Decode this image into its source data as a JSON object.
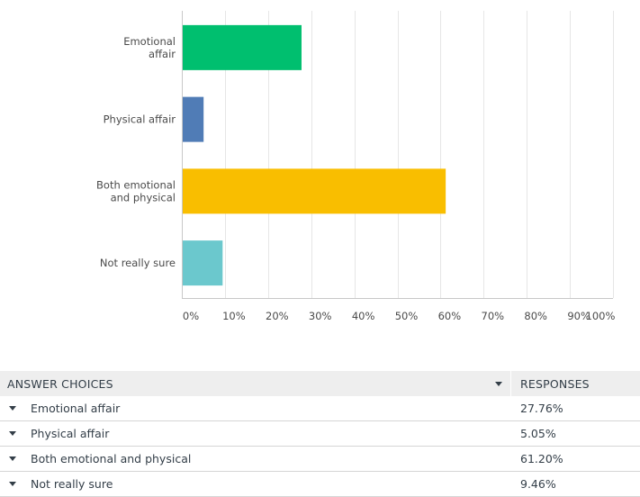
{
  "chart_data": {
    "type": "bar",
    "orientation": "horizontal",
    "categories": [
      [
        "Emotional",
        "affair"
      ],
      [
        "Physical affair"
      ],
      [
        "Both emotional",
        "and physical"
      ],
      [
        "Not really sure"
      ]
    ],
    "values": [
      27.76,
      5.05,
      61.2,
      9.46
    ],
    "colors": [
      "#00bf6f",
      "#507cb6",
      "#f9be00",
      "#6bc8cd"
    ],
    "xlim": [
      0,
      100
    ],
    "x_ticks": [
      "0%",
      "10%",
      "20%",
      "30%",
      "40%",
      "50%",
      "60%",
      "70%",
      "80%",
      "90%",
      "100%"
    ],
    "grid": true
  },
  "table": {
    "header": {
      "choices": "ANSWER CHOICES",
      "responses": "RESPONSES"
    },
    "rows": [
      {
        "choice": "Emotional affair",
        "response": "27.76%"
      },
      {
        "choice": "Physical affair",
        "response": "5.05%"
      },
      {
        "choice": "Both emotional and physical",
        "response": "61.20%"
      },
      {
        "choice": "Not really sure",
        "response": "9.46%"
      }
    ]
  }
}
